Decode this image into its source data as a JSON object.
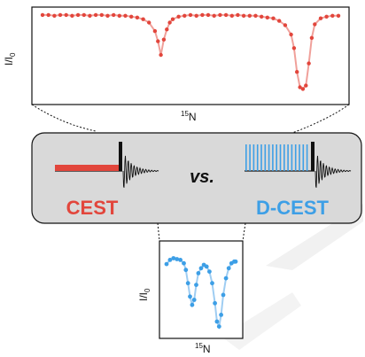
{
  "colors": {
    "cest": "#e2463c",
    "cest_line": "#f0a09a",
    "dcest": "#3d9fe6",
    "dcest_line": "#9fcdf2",
    "panel": "#d9d9d9",
    "watermark": "#e6e6e6"
  },
  "labels": {
    "cest": "CEST",
    "vs": "vs.",
    "dcest": "D-CEST"
  },
  "axes": {
    "top_ylabel_main": "I/I",
    "top_ylabel_sub": "0",
    "top_xlabel_sup": "15",
    "top_xlabel_main": "N",
    "bottom_ylabel_main": "I/I",
    "bottom_ylabel_sub": "0",
    "bottom_xlabel_sup": "15",
    "bottom_xlabel_main": "N"
  },
  "chart_data": [
    {
      "type": "scatter",
      "name": "CEST profile (top)",
      "xlim": [
        0,
        1
      ],
      "ylim": [
        0,
        1
      ],
      "x": [
        0.0,
        0.02,
        0.04,
        0.06,
        0.08,
        0.1,
        0.12,
        0.14,
        0.16,
        0.18,
        0.2,
        0.22,
        0.24,
        0.26,
        0.28,
        0.3,
        0.32,
        0.34,
        0.36,
        0.38,
        0.39,
        0.4,
        0.41,
        0.42,
        0.43,
        0.44,
        0.46,
        0.48,
        0.5,
        0.52,
        0.54,
        0.56,
        0.58,
        0.6,
        0.62,
        0.64,
        0.66,
        0.68,
        0.7,
        0.72,
        0.74,
        0.76,
        0.78,
        0.8,
        0.82,
        0.84,
        0.85,
        0.86,
        0.87,
        0.88,
        0.89,
        0.9,
        0.91,
        0.92,
        0.94,
        0.96,
        0.98,
        1.0
      ],
      "y": [
        0.97,
        0.97,
        0.96,
        0.97,
        0.97,
        0.96,
        0.97,
        0.97,
        0.96,
        0.97,
        0.97,
        0.96,
        0.97,
        0.96,
        0.96,
        0.95,
        0.94,
        0.92,
        0.88,
        0.78,
        0.66,
        0.5,
        0.68,
        0.8,
        0.88,
        0.92,
        0.95,
        0.96,
        0.97,
        0.96,
        0.97,
        0.97,
        0.96,
        0.97,
        0.97,
        0.96,
        0.97,
        0.96,
        0.96,
        0.96,
        0.95,
        0.94,
        0.93,
        0.9,
        0.85,
        0.74,
        0.58,
        0.3,
        0.12,
        0.1,
        0.14,
        0.4,
        0.7,
        0.86,
        0.93,
        0.95,
        0.96,
        0.96
      ]
    },
    {
      "type": "scatter",
      "name": "D-CEST profile (bottom)",
      "xlim": [
        0,
        1
      ],
      "ylim": [
        0,
        1
      ],
      "x": [
        0.0,
        0.05,
        0.1,
        0.15,
        0.2,
        0.25,
        0.28,
        0.31,
        0.34,
        0.37,
        0.4,
        0.43,
        0.46,
        0.5,
        0.54,
        0.58,
        0.62,
        0.66,
        0.7,
        0.73,
        0.76,
        0.79,
        0.82,
        0.86,
        0.9,
        0.94,
        0.98,
        1.0
      ],
      "y": [
        0.85,
        0.9,
        0.92,
        0.91,
        0.9,
        0.86,
        0.78,
        0.62,
        0.46,
        0.36,
        0.42,
        0.6,
        0.74,
        0.8,
        0.84,
        0.82,
        0.76,
        0.62,
        0.38,
        0.16,
        0.1,
        0.24,
        0.48,
        0.68,
        0.8,
        0.86,
        0.88,
        0.88
      ]
    }
  ]
}
